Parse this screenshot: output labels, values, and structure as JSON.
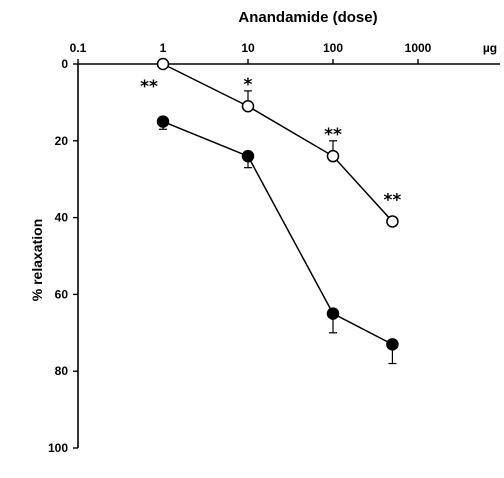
{
  "chart_data": {
    "type": "line",
    "title": "Anandamide (dose)",
    "ylabel": "% relaxation",
    "x_scale": "log",
    "x_axis_position": "top",
    "y_inverted": true,
    "xlim": [
      0.1,
      1000
    ],
    "ylim": [
      0,
      100
    ],
    "x_ticks": [
      0.1,
      1,
      10,
      100,
      1000
    ],
    "x_tick_labels": [
      "0.1",
      "1",
      "10",
      "100",
      "1000"
    ],
    "x_unit_label": "µg",
    "y_ticks": [
      0,
      20,
      40,
      60,
      80,
      100
    ],
    "y_tick_labels": [
      "0",
      "20",
      "40",
      "60",
      "80",
      "100"
    ],
    "grid": false,
    "legend": false,
    "x": [
      1,
      10,
      100,
      500
    ],
    "series": [
      {
        "marker": "open-circle",
        "values": [
          0,
          11,
          24,
          41
        ],
        "errors": [
          0,
          4,
          4,
          0
        ],
        "annotations": [
          "**",
          "*",
          "**",
          "**"
        ]
      },
      {
        "marker": "filled-circle",
        "values": [
          15,
          24,
          65,
          73
        ],
        "errors": [
          2,
          3,
          5,
          5
        ],
        "annotations": [
          "",
          "",
          "",
          ""
        ]
      }
    ]
  }
}
